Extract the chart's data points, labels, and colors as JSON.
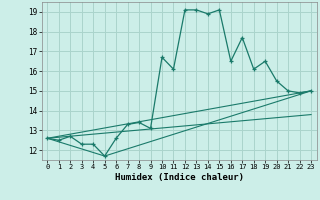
{
  "title": "",
  "xlabel": "Humidex (Indice chaleur)",
  "ylabel": "",
  "background_color": "#cceee8",
  "grid_color": "#aad4cc",
  "line_color": "#1a7a6a",
  "xlim": [
    -0.5,
    23.5
  ],
  "ylim": [
    11.5,
    19.5
  ],
  "xticks": [
    0,
    1,
    2,
    3,
    4,
    5,
    6,
    7,
    8,
    9,
    10,
    11,
    12,
    13,
    14,
    15,
    16,
    17,
    18,
    19,
    20,
    21,
    22,
    23
  ],
  "yticks": [
    12,
    13,
    14,
    15,
    16,
    17,
    18,
    19
  ],
  "series": [
    [
      0,
      12.6
    ],
    [
      1,
      12.5
    ],
    [
      2,
      12.7
    ],
    [
      3,
      12.3
    ],
    [
      4,
      12.3
    ],
    [
      5,
      11.7
    ],
    [
      6,
      12.6
    ],
    [
      7,
      13.3
    ],
    [
      8,
      13.4
    ],
    [
      9,
      13.1
    ],
    [
      10,
      16.7
    ],
    [
      11,
      16.1
    ],
    [
      12,
      19.1
    ],
    [
      13,
      19.1
    ],
    [
      14,
      18.9
    ],
    [
      15,
      19.1
    ],
    [
      16,
      16.5
    ],
    [
      17,
      17.7
    ],
    [
      18,
      16.1
    ],
    [
      19,
      16.5
    ],
    [
      20,
      15.5
    ],
    [
      21,
      15.0
    ],
    [
      22,
      14.9
    ],
    [
      23,
      15.0
    ]
  ],
  "extra_lines": [
    [
      [
        0,
        12.6
      ],
      [
        23,
        15.0
      ]
    ],
    [
      [
        0,
        12.6
      ],
      [
        5,
        11.7
      ],
      [
        23,
        15.0
      ]
    ],
    [
      [
        0,
        12.6
      ],
      [
        23,
        13.8
      ]
    ]
  ],
  "spine_color": "#888888"
}
